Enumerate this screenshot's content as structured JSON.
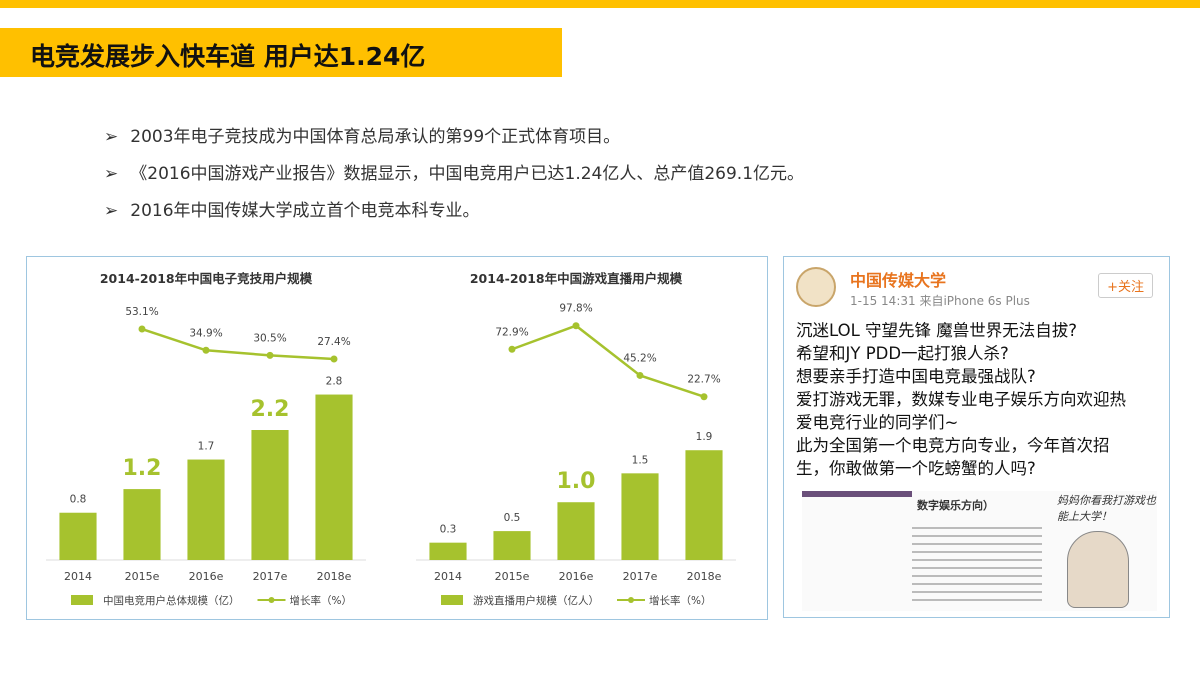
{
  "header": {
    "title": "电竞发展步入快车道 用户达1.24亿"
  },
  "bullets": [
    "2003年电子竞技成为中国体育总局承认的第99个正式体育项目。",
    "《2016中国游戏产业报告》数据显示，中国电竞用户已达1.24亿人、总产值269.1亿元。",
    "2016年中国传媒大学成立首个电竞本科专业。"
  ],
  "chart_data": [
    {
      "type": "combo",
      "title": "2014-2018年中国电子竞技用户规模",
      "categories": [
        "2014",
        "2015e",
        "2016e",
        "2017e",
        "2018e"
      ],
      "ylim": [
        0,
        4.4
      ],
      "y2lim": [
        -145,
        78
      ],
      "emphasized": [
        1,
        3
      ],
      "series": [
        {
          "name": "中国电竞用户总体规模（亿）",
          "color": "#a6c22e",
          "values": [
            0.8,
            1.2,
            1.7,
            2.2,
            2.8
          ]
        },
        {
          "name": "增长率（%）",
          "color": "#a6c22e",
          "axis": "y2",
          "values": [
            null,
            53.1,
            34.9,
            30.5,
            27.4
          ],
          "value_labels": [
            null,
            "53.1%",
            "34.9%",
            "30.5%",
            "27.4%"
          ]
        }
      ]
    },
    {
      "type": "combo",
      "title": "2014-2018年中国游戏直播用户规模",
      "categories": [
        "2014",
        "2015e",
        "2016e",
        "2017e",
        "2018e"
      ],
      "ylim": [
        0,
        4.5
      ],
      "y2lim": [
        -150,
        125
      ],
      "emphasized": [
        2
      ],
      "series": [
        {
          "name": "游戏直播用户规模（亿人）",
          "color": "#a6c22e",
          "values": [
            0.3,
            0.5,
            1.0,
            1.5,
            1.9
          ],
          "value_labels": [
            "0.3",
            "0.5",
            "1.0",
            "1.5",
            "1.9"
          ]
        },
        {
          "name": "增长率（%）",
          "color": "#a6c22e",
          "axis": "y2",
          "values": [
            null,
            72.9,
            97.8,
            45.2,
            22.7
          ],
          "value_labels": [
            null,
            "72.9%",
            "97.8%",
            "45.2%",
            "22.7%"
          ]
        }
      ]
    }
  ],
  "weibo": {
    "account": "中国传媒大学",
    "meta": "1-15 14:31 来自iPhone 6s Plus",
    "follow": "+关注",
    "lines": [
      "沉迷LOL 守望先锋 魔兽世界无法自拔?",
      "希望和JY PDD一起打狼人杀?",
      "想要亲手打造中国电竞最强战队?",
      "爱打游戏无罪，数媒专业电子娱乐方向欢迎热",
      "爱电竞行业的同学们~",
      "此为全国第一个电竞方向专业，今年首次招",
      "生，你敢做第一个吃螃蟹的人吗?"
    ],
    "poster_heading": "数字娱乐方向）",
    "poster_caption": "妈妈你看我打游戏也能上大学！"
  }
}
